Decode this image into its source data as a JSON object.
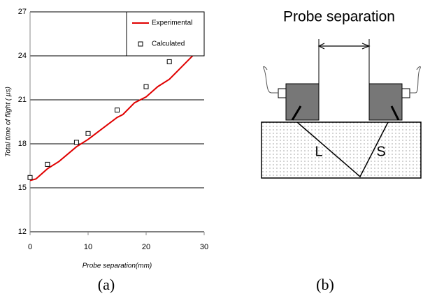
{
  "chart_data": {
    "type": "line",
    "xlabel": "Probe separation(mm)",
    "ylabel": "Total time of flight ( μs)",
    "xlim": [
      0,
      30
    ],
    "xticks": [
      0,
      10,
      20,
      30
    ],
    "ylim": [
      12,
      27
    ],
    "yticks": [
      12,
      15,
      18,
      21,
      24,
      27
    ],
    "grid": true,
    "legend": "upper right",
    "series": [
      {
        "name": "Experimental",
        "type": "line",
        "color": "#e00000",
        "x": [
          0,
          1,
          3,
          5,
          8,
          10,
          12,
          15,
          16,
          18,
          20,
          22,
          24,
          26,
          28.5
        ],
        "values": [
          15.5,
          15.6,
          16.3,
          16.8,
          17.8,
          18.3,
          18.9,
          19.8,
          20.0,
          20.8,
          21.2,
          21.9,
          22.4,
          23.2,
          24.2
        ]
      },
      {
        "name": "Calculated",
        "type": "scatter",
        "color": "#000000",
        "x": [
          0,
          3,
          8,
          10,
          15,
          20,
          24
        ],
        "values": [
          15.7,
          16.6,
          18.1,
          18.7,
          20.3,
          21.9,
          23.6
        ]
      }
    ]
  },
  "diagram": {
    "title": "Probe separation",
    "labels": [
      "L",
      "S"
    ]
  },
  "captions": [
    "(a)",
    "(b)"
  ]
}
